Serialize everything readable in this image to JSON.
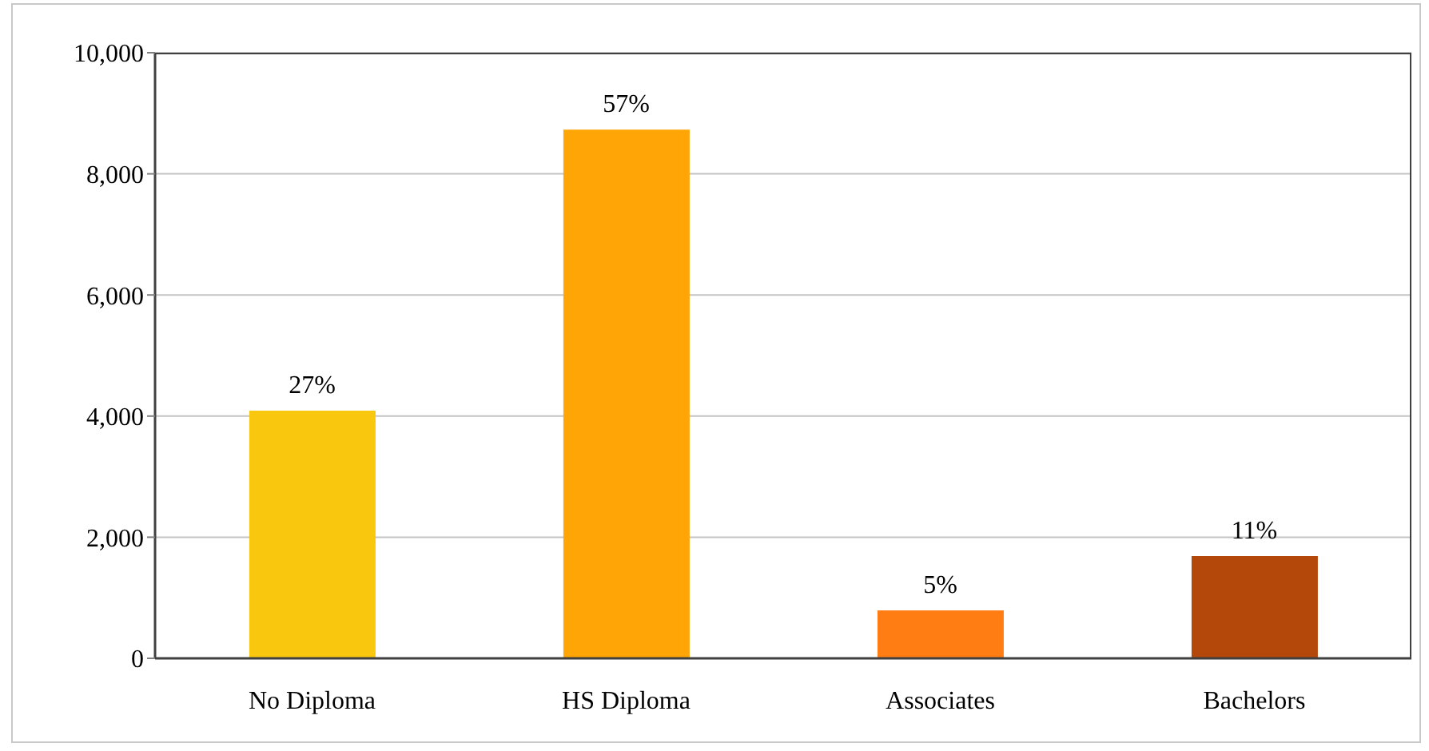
{
  "chart_data": {
    "type": "bar",
    "categories": [
      "No Diploma",
      "HS Diploma",
      "Associates",
      "Bachelors"
    ],
    "values": [
      4090,
      8730,
      790,
      1690
    ],
    "colors": [
      "#f8c70e",
      "#ffa505",
      "#ff7d12",
      "#b3480a"
    ],
    "annotations": [
      {
        "text": "27%",
        "x": "No Diploma",
        "y": 4090
      },
      {
        "text": "57%",
        "x": "HS Diploma",
        "y": 8730
      },
      {
        "text": "5%",
        "x": "Associates",
        "y": 790
      },
      {
        "text": "11%",
        "x": "Bachelors",
        "y": 1690
      }
    ],
    "ylim": [
      0,
      10000
    ],
    "yticks": [
      0,
      {
        "value": 2000,
        "label": "2,000"
      },
      {
        "value": 4000,
        "label": "4,000"
      },
      {
        "value": 6000,
        "label": "6,000"
      },
      {
        "value": 8000,
        "label": "8,000"
      },
      {
        "value": 10000,
        "label": "10,000"
      }
    ],
    "grid": "y"
  }
}
